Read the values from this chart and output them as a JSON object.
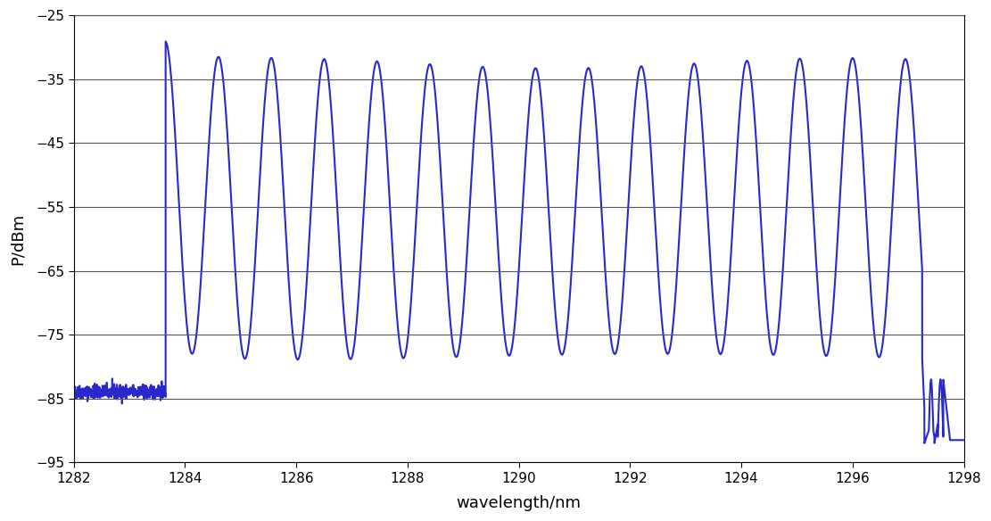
{
  "xlabel": "wavelength/nm",
  "ylabel": "P/dBm",
  "xlim": [
    1282,
    1298
  ],
  "ylim": [
    -95,
    -25
  ],
  "xticks": [
    1282,
    1284,
    1286,
    1288,
    1290,
    1292,
    1294,
    1296,
    1298
  ],
  "yticks": [
    -25,
    -35,
    -45,
    -55,
    -65,
    -75,
    -85,
    -95
  ],
  "line_color": "#2828CC",
  "noise_floor": -84.0,
  "noise_start": 1282.0,
  "noise_end": 1283.65,
  "signal_start": 1283.65,
  "signal_end": 1297.25,
  "signal_peak": -32.5,
  "signal_trough": -78.5,
  "signal_period": 0.95,
  "background_color": "#ffffff",
  "grid_color": "#555555",
  "figsize": [
    11.11,
    5.84
  ],
  "dpi": 100
}
